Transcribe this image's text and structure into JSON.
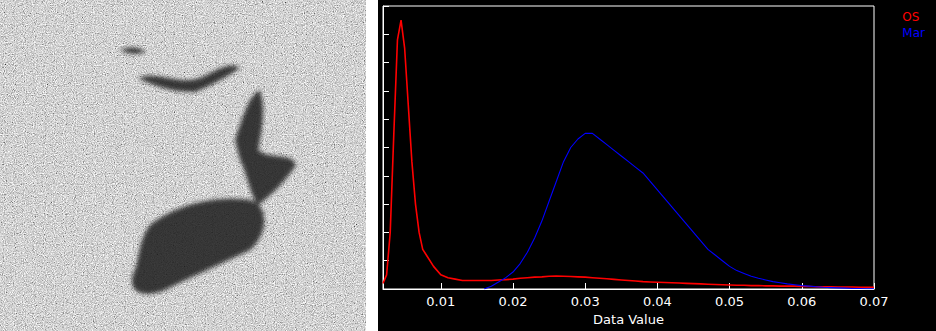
{
  "chart_data": {
    "type": "line",
    "x_label": "Data Value",
    "x": [
      0.002,
      0.0025,
      0.003,
      0.0035,
      0.004,
      0.0045,
      0.005,
      0.0055,
      0.006,
      0.0065,
      0.007,
      0.0075,
      0.008,
      0.009,
      0.01,
      0.011,
      0.012,
      0.013,
      0.014,
      0.015,
      0.016,
      0.017,
      0.018,
      0.019,
      0.02,
      0.021,
      0.022,
      0.023,
      0.024,
      0.025,
      0.026,
      0.027,
      0.028,
      0.029,
      0.03,
      0.031,
      0.032,
      0.033,
      0.034,
      0.035,
      0.036,
      0.037,
      0.038,
      0.039,
      0.04,
      0.041,
      0.042,
      0.043,
      0.044,
      0.045,
      0.046,
      0.047,
      0.048,
      0.049,
      0.05,
      0.051,
      0.052,
      0.053,
      0.054,
      0.055,
      0.056,
      0.057,
      0.058,
      0.059,
      0.06,
      0.061,
      0.062,
      0.063,
      0.064,
      0.065,
      0.066,
      0.067,
      0.068,
      0.069,
      0.07
    ],
    "series": [
      {
        "name": "OS",
        "color": "#ff0000",
        "values": [
          2,
          5,
          20,
          55,
          88,
          95,
          85,
          65,
          45,
          30,
          20,
          14,
          12,
          8,
          5,
          4,
          3.5,
          3,
          3,
          3,
          3,
          3,
          3.2,
          3.3,
          3.5,
          3.8,
          4,
          4.2,
          4.3,
          4.5,
          4.6,
          4.5,
          4.4,
          4.3,
          4.2,
          4,
          3.8,
          3.6,
          3.4,
          3.2,
          3,
          2.8,
          2.6,
          2.5,
          2.4,
          2.3,
          2.2,
          2.1,
          2,
          1.9,
          1.8,
          1.7,
          1.6,
          1.5,
          1.4,
          1.3,
          1.3,
          1.2,
          1.2,
          1.1,
          1.1,
          1,
          1,
          1,
          0.9,
          0.9,
          0.8,
          0.8,
          0.8,
          0.7,
          0.7,
          0.7,
          0.6,
          0.6,
          0.6
        ]
      },
      {
        "name": "Mar",
        "color": "#0000ff",
        "values": [
          null,
          null,
          null,
          null,
          null,
          null,
          null,
          null,
          null,
          null,
          null,
          null,
          null,
          null,
          null,
          null,
          null,
          null,
          null,
          null,
          0,
          1,
          2.5,
          4,
          6,
          9,
          13,
          18,
          24,
          31,
          38,
          45,
          50,
          53,
          55,
          55,
          53,
          51,
          49,
          47,
          45,
          43,
          41,
          38,
          35,
          32,
          29,
          26,
          23,
          20,
          17,
          14,
          12,
          10,
          8,
          6.5,
          5.5,
          4.5,
          3.8,
          3.2,
          2.6,
          2.2,
          1.8,
          1.5,
          1.2,
          1,
          0.8,
          0.6,
          0.5,
          0.4,
          0.3,
          0.2,
          0.2,
          0.1,
          0.1
        ]
      }
    ],
    "xlim": [
      0.002,
      0.07
    ],
    "xticks": [
      0.01,
      0.02,
      0.03,
      0.04,
      0.05,
      0.06,
      0.07
    ],
    "ylim": [
      0,
      100
    ],
    "yticks": [
      0,
      10,
      20,
      30,
      40,
      50,
      60,
      70,
      80,
      90,
      100
    ],
    "tick_labels": "x",
    "legend": "upper right",
    "grid": false
  }
}
